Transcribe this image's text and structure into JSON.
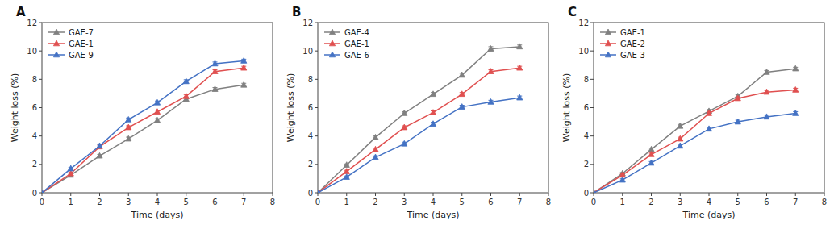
{
  "chart_data": [
    {
      "type": "line",
      "title": "A",
      "xlabel": "Time (days)",
      "ylabel": "Weight loss (%)",
      "x": [
        0,
        1,
        2,
        3,
        4,
        5,
        6,
        7
      ],
      "series": [
        {
          "name": "GAE-7",
          "color": "#808080",
          "values": [
            0,
            1.25,
            2.6,
            3.8,
            5.1,
            6.6,
            7.3,
            7.6
          ],
          "errors": [
            0,
            0.08,
            0.1,
            0.12,
            0.12,
            0.12,
            0.12,
            0.12
          ]
        },
        {
          "name": "GAE-1",
          "color": "#e05050",
          "values": [
            0,
            1.35,
            3.25,
            4.6,
            5.7,
            6.8,
            8.55,
            8.8
          ],
          "errors": [
            0,
            0.08,
            0.1,
            0.12,
            0.12,
            0.12,
            0.12,
            0.12
          ]
        },
        {
          "name": "GAE-9",
          "color": "#4472c4",
          "values": [
            0,
            1.7,
            3.3,
            5.15,
            6.35,
            7.85,
            9.1,
            9.3
          ],
          "errors": [
            0,
            0.08,
            0.1,
            0.12,
            0.12,
            0.12,
            0.12,
            0.12
          ]
        }
      ],
      "xlim": [
        0,
        8
      ],
      "ylim": [
        0,
        12
      ],
      "xticks": [
        0,
        1,
        2,
        3,
        4,
        5,
        6,
        7,
        8
      ],
      "yticks": [
        0,
        2,
        4,
        6,
        8,
        10,
        12
      ],
      "marker": "triangle",
      "legend": "upper left",
      "grid": false
    },
    {
      "type": "line",
      "title": "B",
      "xlabel": "Time (days)",
      "ylabel": "Weight loss (%)",
      "x": [
        0,
        1,
        2,
        3,
        4,
        5,
        6,
        7
      ],
      "series": [
        {
          "name": "GAE-4",
          "color": "#808080",
          "values": [
            0,
            1.95,
            3.9,
            5.6,
            6.95,
            8.3,
            10.15,
            10.3
          ],
          "errors": [
            0,
            0.08,
            0.1,
            0.12,
            0.12,
            0.12,
            0.15,
            0.12
          ]
        },
        {
          "name": "GAE-1",
          "color": "#e05050",
          "values": [
            0,
            1.5,
            3.05,
            4.6,
            5.65,
            6.95,
            8.55,
            8.8
          ],
          "errors": [
            0,
            0.08,
            0.1,
            0.12,
            0.12,
            0.12,
            0.12,
            0.12
          ]
        },
        {
          "name": "GAE-6",
          "color": "#4472c4",
          "values": [
            0,
            1.1,
            2.5,
            3.45,
            4.85,
            6.05,
            6.4,
            6.7
          ],
          "errors": [
            0,
            0.08,
            0.1,
            0.12,
            0.12,
            0.12,
            0.12,
            0.12
          ]
        }
      ],
      "xlim": [
        0,
        8
      ],
      "ylim": [
        0,
        12
      ],
      "xticks": [
        0,
        1,
        2,
        3,
        4,
        5,
        6,
        7,
        8
      ],
      "yticks": [
        0,
        2,
        4,
        6,
        8,
        10,
        12
      ],
      "marker": "triangle",
      "legend": "upper left",
      "grid": false
    },
    {
      "type": "line",
      "title": "C",
      "xlabel": "Time (days)",
      "ylabel": "Weight loss (%)",
      "x": [
        0,
        1,
        2,
        3,
        4,
        5,
        6,
        7
      ],
      "series": [
        {
          "name": "GAE-1",
          "color": "#808080",
          "values": [
            0,
            1.35,
            3.05,
            4.7,
            5.75,
            6.8,
            8.5,
            8.75
          ],
          "errors": [
            0,
            0.08,
            0.1,
            0.12,
            0.12,
            0.12,
            0.12,
            0.1
          ]
        },
        {
          "name": "GAE-2",
          "color": "#e05050",
          "values": [
            0,
            1.25,
            2.7,
            3.8,
            5.6,
            6.65,
            7.1,
            7.25
          ],
          "errors": [
            0,
            0.08,
            0.1,
            0.12,
            0.12,
            0.12,
            0.12,
            0.12
          ]
        },
        {
          "name": "GAE-3",
          "color": "#4472c4",
          "values": [
            0,
            0.9,
            2.1,
            3.3,
            4.5,
            5.0,
            5.35,
            5.6
          ],
          "errors": [
            0,
            0.08,
            0.1,
            0.12,
            0.12,
            0.12,
            0.12,
            0.12
          ]
        }
      ],
      "xlim": [
        0,
        8
      ],
      "ylim": [
        0,
        12
      ],
      "xticks": [
        0,
        1,
        2,
        3,
        4,
        5,
        6,
        7,
        8
      ],
      "yticks": [
        0,
        2,
        4,
        6,
        8,
        10,
        12
      ],
      "marker": "triangle",
      "legend": "upper left",
      "grid": false
    }
  ]
}
